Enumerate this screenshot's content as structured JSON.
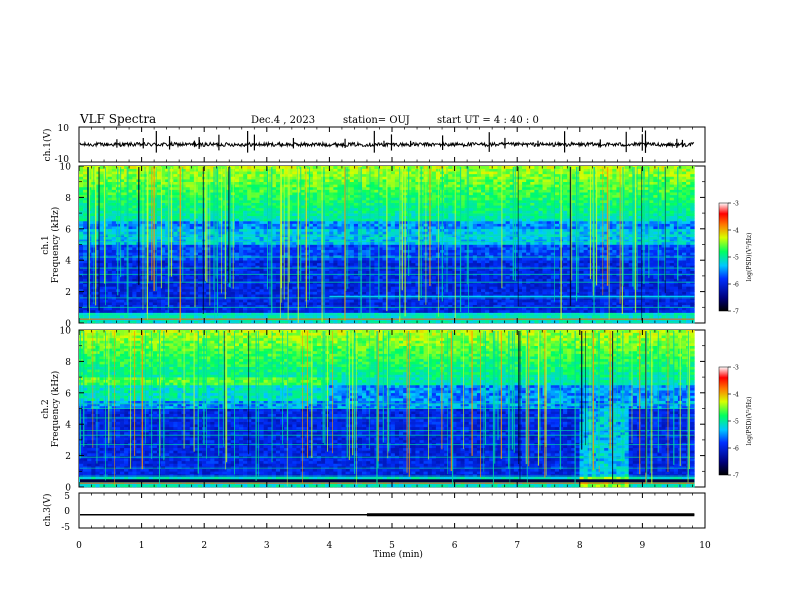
{
  "header": {
    "title": "VLF Spectra",
    "date": "Dec.4 , 2023",
    "station": "station= OUJ",
    "start": "start  UT =   4 : 40 : 0"
  },
  "chart_data": [
    {
      "type": "line",
      "panel": "ch1-waveform",
      "ylabel": "ch.1(V)",
      "ylim": [
        -10,
        10
      ],
      "yticks": [
        "10",
        "-10"
      ],
      "x_range_min": [
        0,
        9.83
      ],
      "baseline_v": 0,
      "trace_color": "#000000"
    },
    {
      "type": "heatmap",
      "panel": "ch1-spectrogram",
      "ylabel": "ch.1\nFrequency (kHz)",
      "ylim": [
        0,
        10
      ],
      "yticks": [
        "0",
        "2",
        "4",
        "6",
        "8",
        "10"
      ],
      "x_range_min": [
        0,
        9.83
      ],
      "colorbar": {
        "label": "log(PSD)(V²/Hz)",
        "min": -7,
        "max": -3,
        "ticks": [
          "-3",
          "-4",
          "-5",
          "-6",
          "-7"
        ]
      }
    },
    {
      "type": "heatmap",
      "panel": "ch2-spectrogram",
      "ylabel": "ch.2\nFrequency (kHz)",
      "ylim": [
        0,
        10
      ],
      "yticks": [
        "0",
        "2",
        "4",
        "6",
        "8",
        "10"
      ],
      "x_range_min": [
        0,
        9.83
      ],
      "colorbar": {
        "label": "log(PSD)(V²/Hz)",
        "min": -7,
        "max": -3,
        "ticks": [
          "-3",
          "-4",
          "-5",
          "-6",
          "-7"
        ]
      }
    },
    {
      "type": "line",
      "panel": "ch3-waveform",
      "ylabel": "ch.3(V)",
      "ylim": [
        -5,
        5
      ],
      "yticks": [
        "5",
        "0",
        "-5"
      ],
      "x_range_min": [
        0,
        9.83
      ],
      "baseline_v": -1.2,
      "trace_color": "#000000"
    }
  ],
  "xaxis": {
    "label": "Time (min)",
    "range": [
      0,
      10
    ],
    "ticks": [
      "0",
      "1",
      "2",
      "3",
      "4",
      "5",
      "6",
      "7",
      "8",
      "9",
      "10"
    ]
  }
}
